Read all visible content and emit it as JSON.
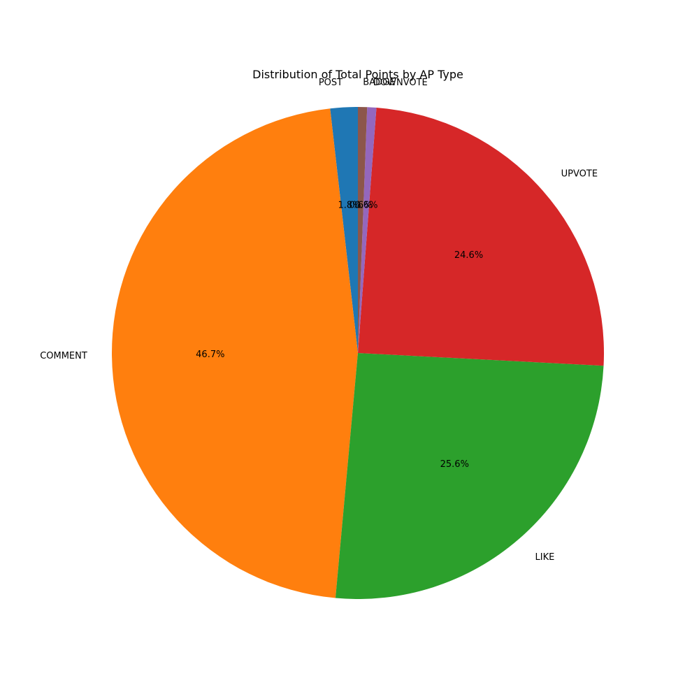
{
  "chart_data": {
    "type": "pie",
    "title": "Distribution of Total Points by AP Type",
    "slices": [
      {
        "label": "POST",
        "percent": 1.8,
        "percent_label": "1.8%",
        "color": "#1f77b4"
      },
      {
        "label": "COMMENT",
        "percent": 46.7,
        "percent_label": "46.7%",
        "color": "#ff7f0e"
      },
      {
        "label": "LIKE",
        "percent": 25.6,
        "percent_label": "25.6%",
        "color": "#2ca02c"
      },
      {
        "label": "UPVOTE",
        "percent": 24.6,
        "percent_label": "24.6%",
        "color": "#d62728"
      },
      {
        "label": "DOWNVOTE",
        "percent": 0.6,
        "percent_label": "0.6%",
        "color": "#9467bd"
      },
      {
        "label": "BADGE",
        "percent": 0.6,
        "percent_label": "0.6%",
        "color": "#8c564b"
      }
    ],
    "start_angle_deg": 90,
    "direction": "counterclockwise",
    "legend": "none"
  }
}
